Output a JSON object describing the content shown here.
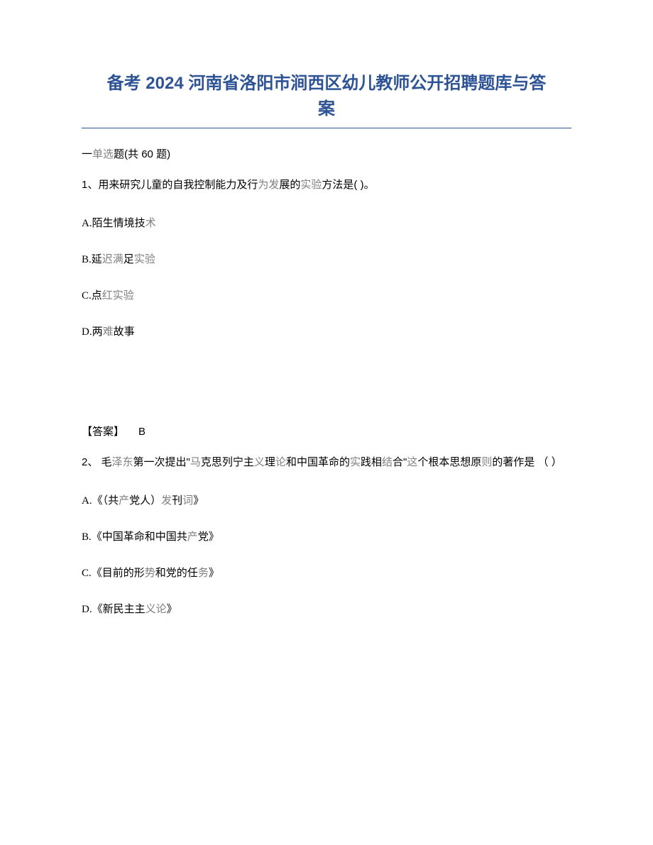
{
  "document": {
    "title_line1": "备考 2024 河南省洛阳市涧西区幼儿教师公开招聘题库与答",
    "title_line2": "案",
    "title_color": "#2e5496",
    "title_fontsize": 24,
    "divider_color": "#2e5496",
    "section": {
      "prefix": "一",
      "label_part1": "单选",
      "label_part2": "题",
      "count_prefix": "(共 ",
      "count": "60",
      "count_suffix": " 题)"
    },
    "questions": [
      {
        "number": "1、",
        "stem_black": "用来研究儿童的自我控制能力及行",
        "stem_gray1": "为发",
        "stem_black2": "展的",
        "stem_gray2": "实验",
        "stem_black3": "方法是(   )。",
        "options": [
          {
            "label": "A.",
            "text_black": "陌生情境技",
            "text_gray": "术"
          },
          {
            "label": "B.",
            "text_black": "延",
            "text_gray": "迟满",
            "text_black2": "足",
            "text_gray2": "实验"
          },
          {
            "label": "C.",
            "text_black": "点",
            "text_gray": "红实验"
          },
          {
            "label": "D.",
            "text_black": "两",
            "text_gray": "难",
            "text_black2": "故事"
          }
        ],
        "answer_label": "【答案】",
        "answer_value": "B"
      },
      {
        "number": "2、",
        "stem_parts": [
          {
            "text": " 毛",
            "gray": false
          },
          {
            "text": "泽东",
            "gray": true
          },
          {
            "text": "第一次提出\"",
            "gray": false
          },
          {
            "text": "马",
            "gray": true
          },
          {
            "text": "克思列宁主",
            "gray": false
          },
          {
            "text": "义",
            "gray": true
          },
          {
            "text": "理",
            "gray": false
          },
          {
            "text": "论",
            "gray": true
          },
          {
            "text": "和中国革命的",
            "gray": false
          },
          {
            "text": "实",
            "gray": true
          },
          {
            "text": "践相",
            "gray": false
          },
          {
            "text": "结",
            "gray": true
          },
          {
            "text": "合\"",
            "gray": false
          },
          {
            "text": "这",
            "gray": true
          },
          {
            "text": "个根本思想原",
            "gray": false
          },
          {
            "text": "则",
            "gray": true
          },
          {
            "text": "的著作是 （ ）",
            "gray": false
          }
        ],
        "options": [
          {
            "label": "A.",
            "parts": [
              {
                "text": "《（共",
                "gray": false
              },
              {
                "text": "产",
                "gray": true
              },
              {
                "text": "党人）",
                "gray": false
              },
              {
                "text": "发",
                "gray": true
              },
              {
                "text": "刊",
                "gray": false
              },
              {
                "text": "词",
                "gray": true
              },
              {
                "text": "》",
                "gray": false
              }
            ]
          },
          {
            "label": "B.",
            "parts": [
              {
                "text": "《中国革命和中国共",
                "gray": false
              },
              {
                "text": "产",
                "gray": true
              },
              {
                "text": "党》",
                "gray": false
              }
            ]
          },
          {
            "label": "C.",
            "parts": [
              {
                "text": "《目前的形",
                "gray": false
              },
              {
                "text": "势",
                "gray": true
              },
              {
                "text": "和党的任",
                "gray": false
              },
              {
                "text": "务",
                "gray": true
              },
              {
                "text": "》",
                "gray": false
              }
            ]
          },
          {
            "label": "D.",
            "parts": [
              {
                "text": "《新民主主",
                "gray": false
              },
              {
                "text": "义论",
                "gray": true
              },
              {
                "text": "》",
                "gray": false
              }
            ]
          }
        ]
      }
    ],
    "body_fontsize": 15,
    "text_color": "#000000",
    "gray_color": "#808080",
    "background_color": "#ffffff"
  }
}
